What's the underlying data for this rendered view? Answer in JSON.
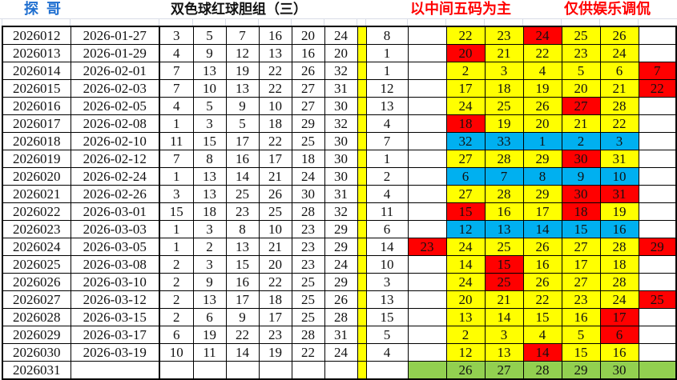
{
  "header": {
    "author": "探哥",
    "title": "双色球红球胆组（三）",
    "note_left": "以中间五码为主",
    "note_right": "仅供娱乐调侃"
  },
  "colors": {
    "y": "#FFFF00",
    "r": "#FF0000",
    "b": "#00B0F0",
    "g": "#92D050"
  },
  "rows": [
    {
      "issue": "2026012",
      "date": "2026-01-27",
      "reds": [
        3,
        5,
        7,
        16,
        20,
        24
      ],
      "blue": 8,
      "left": null,
      "mid": [
        [
          22,
          "y"
        ],
        [
          23,
          "y"
        ],
        [
          24,
          "r"
        ],
        [
          25,
          "y"
        ],
        [
          26,
          "y"
        ]
      ],
      "right": null
    },
    {
      "issue": "2026013",
      "date": "2026-01-29",
      "reds": [
        4,
        9,
        12,
        13,
        16,
        20
      ],
      "blue": 1,
      "left": null,
      "mid": [
        [
          20,
          "r"
        ],
        [
          21,
          "y"
        ],
        [
          22,
          "y"
        ],
        [
          23,
          "y"
        ],
        [
          24,
          "y"
        ]
      ],
      "right": null
    },
    {
      "issue": "2026014",
      "date": "2026-02-01",
      "reds": [
        7,
        13,
        19,
        22,
        26,
        32
      ],
      "blue": 1,
      "left": null,
      "mid": [
        [
          2,
          "y"
        ],
        [
          3,
          "y"
        ],
        [
          4,
          "y"
        ],
        [
          5,
          "y"
        ],
        [
          6,
          "y"
        ]
      ],
      "right": [
        7,
        "r"
      ]
    },
    {
      "issue": "2026015",
      "date": "2026-02-03",
      "reds": [
        7,
        10,
        13,
        22,
        27,
        31
      ],
      "blue": 12,
      "left": null,
      "mid": [
        [
          17,
          "y"
        ],
        [
          18,
          "y"
        ],
        [
          19,
          "y"
        ],
        [
          20,
          "y"
        ],
        [
          21,
          "y"
        ]
      ],
      "right": [
        22,
        "r"
      ]
    },
    {
      "issue": "2026016",
      "date": "2026-02-05",
      "reds": [
        4,
        5,
        9,
        10,
        27,
        30
      ],
      "blue": 13,
      "left": null,
      "mid": [
        [
          24,
          "y"
        ],
        [
          25,
          "y"
        ],
        [
          26,
          "y"
        ],
        [
          27,
          "r"
        ],
        [
          28,
          "y"
        ]
      ],
      "right": null
    },
    {
      "issue": "2026017",
      "date": "2026-02-08",
      "reds": [
        1,
        3,
        5,
        18,
        29,
        32
      ],
      "blue": 4,
      "left": null,
      "mid": [
        [
          18,
          "r"
        ],
        [
          19,
          "y"
        ],
        [
          20,
          "y"
        ],
        [
          21,
          "y"
        ],
        [
          22,
          "y"
        ]
      ],
      "right": null
    },
    {
      "issue": "2026018",
      "date": "2026-02-10",
      "reds": [
        11,
        15,
        17,
        22,
        25,
        30
      ],
      "blue": 7,
      "left": null,
      "mid": [
        [
          32,
          "b"
        ],
        [
          33,
          "b"
        ],
        [
          1,
          "b"
        ],
        [
          2,
          "b"
        ],
        [
          3,
          "b"
        ]
      ],
      "right": null
    },
    {
      "issue": "2026019",
      "date": "2026-02-12",
      "reds": [
        7,
        8,
        16,
        17,
        18,
        30
      ],
      "blue": 1,
      "left": null,
      "mid": [
        [
          27,
          "y"
        ],
        [
          28,
          "y"
        ],
        [
          29,
          "y"
        ],
        [
          30,
          "r"
        ],
        [
          31,
          "y"
        ]
      ],
      "right": null
    },
    {
      "issue": "2026020",
      "date": "2026-02-24",
      "reds": [
        1,
        13,
        14,
        21,
        24,
        30
      ],
      "blue": 2,
      "left": null,
      "mid": [
        [
          6,
          "b"
        ],
        [
          7,
          "b"
        ],
        [
          8,
          "b"
        ],
        [
          9,
          "b"
        ],
        [
          10,
          "b"
        ]
      ],
      "right": null
    },
    {
      "issue": "2026021",
      "date": "2026-02-26",
      "reds": [
        3,
        13,
        25,
        26,
        30,
        31
      ],
      "blue": 4,
      "left": null,
      "mid": [
        [
          27,
          "y"
        ],
        [
          28,
          "y"
        ],
        [
          29,
          "y"
        ],
        [
          30,
          "r"
        ],
        [
          31,
          "r"
        ]
      ],
      "right": null
    },
    {
      "issue": "2026022",
      "date": "2026-03-01",
      "reds": [
        15,
        18,
        23,
        25,
        28,
        32
      ],
      "blue": 11,
      "left": null,
      "mid": [
        [
          15,
          "r"
        ],
        [
          16,
          "y"
        ],
        [
          17,
          "y"
        ],
        [
          18,
          "r"
        ],
        [
          19,
          "y"
        ]
      ],
      "right": null
    },
    {
      "issue": "2026023",
      "date": "2026-03-03",
      "reds": [
        1,
        3,
        8,
        10,
        23,
        29
      ],
      "blue": 6,
      "left": null,
      "mid": [
        [
          12,
          "b"
        ],
        [
          13,
          "b"
        ],
        [
          14,
          "b"
        ],
        [
          15,
          "b"
        ],
        [
          16,
          "b"
        ]
      ],
      "right": null
    },
    {
      "issue": "2026024",
      "date": "2026-03-05",
      "reds": [
        1,
        2,
        13,
        21,
        23,
        29
      ],
      "blue": 14,
      "left": [
        23,
        "r"
      ],
      "mid": [
        [
          24,
          "y"
        ],
        [
          25,
          "y"
        ],
        [
          26,
          "y"
        ],
        [
          27,
          "y"
        ],
        [
          28,
          "y"
        ]
      ],
      "right": [
        29,
        "r"
      ]
    },
    {
      "issue": "2026025",
      "date": "2026-03-08",
      "reds": [
        2,
        3,
        15,
        20,
        23,
        24
      ],
      "blue": 10,
      "left": null,
      "mid": [
        [
          14,
          "y"
        ],
        [
          15,
          "r"
        ],
        [
          16,
          "y"
        ],
        [
          17,
          "y"
        ],
        [
          18,
          "y"
        ]
      ],
      "right": null
    },
    {
      "issue": "2026026",
      "date": "2026-03-10",
      "reds": [
        2,
        9,
        16,
        22,
        25,
        29
      ],
      "blue": 3,
      "left": null,
      "mid": [
        [
          24,
          "y"
        ],
        [
          25,
          "r"
        ],
        [
          26,
          "y"
        ],
        [
          27,
          "y"
        ],
        [
          28,
          "y"
        ]
      ],
      "right": null
    },
    {
      "issue": "2026027",
      "date": "2026-03-12",
      "reds": [
        2,
        13,
        17,
        18,
        25,
        26
      ],
      "blue": 13,
      "left": null,
      "mid": [
        [
          20,
          "y"
        ],
        [
          21,
          "y"
        ],
        [
          22,
          "y"
        ],
        [
          23,
          "y"
        ],
        [
          24,
          "y"
        ]
      ],
      "right": [
        25,
        "r"
      ]
    },
    {
      "issue": "2026028",
      "date": "2026-03-15",
      "reds": [
        2,
        6,
        9,
        17,
        25,
        28
      ],
      "blue": 15,
      "left": null,
      "mid": [
        [
          13,
          "y"
        ],
        [
          14,
          "y"
        ],
        [
          15,
          "y"
        ],
        [
          16,
          "y"
        ],
        [
          17,
          "r"
        ]
      ],
      "right": null
    },
    {
      "issue": "2026029",
      "date": "2026-03-17",
      "reds": [
        6,
        19,
        22,
        23,
        28,
        31
      ],
      "blue": 5,
      "left": null,
      "mid": [
        [
          2,
          "y"
        ],
        [
          3,
          "y"
        ],
        [
          4,
          "y"
        ],
        [
          5,
          "y"
        ],
        [
          6,
          "r"
        ]
      ],
      "right": null
    },
    {
      "issue": "2026030",
      "date": "2026-03-19",
      "reds": [
        10,
        11,
        14,
        19,
        22,
        24
      ],
      "blue": 4,
      "left": null,
      "mid": [
        [
          12,
          "y"
        ],
        [
          13,
          "y"
        ],
        [
          14,
          "r"
        ],
        [
          15,
          "y"
        ],
        [
          16,
          "y"
        ]
      ],
      "right": null
    },
    {
      "issue": "2026031",
      "date": "",
      "reds": [
        "",
        "",
        "",
        "",
        "",
        ""
      ],
      "blue": "",
      "left": [
        "",
        "g"
      ],
      "mid": [
        [
          26,
          "g"
        ],
        [
          27,
          "g"
        ],
        [
          28,
          "g"
        ],
        [
          29,
          "g"
        ],
        [
          30,
          "g"
        ]
      ],
      "right": [
        "",
        "g"
      ]
    }
  ]
}
